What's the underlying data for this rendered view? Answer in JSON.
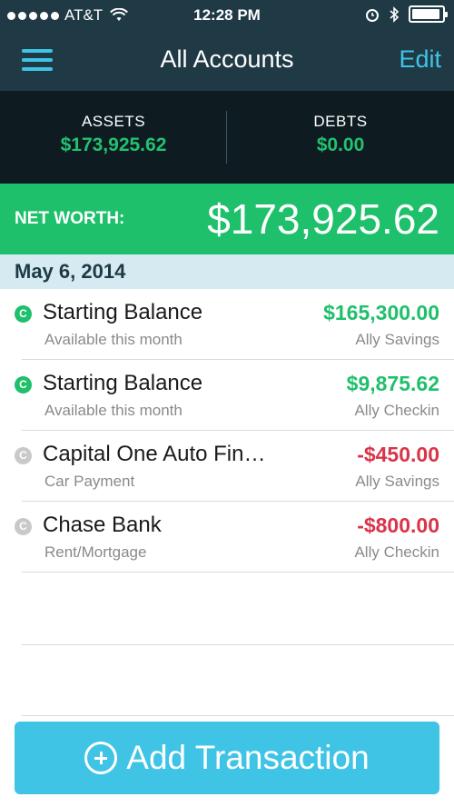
{
  "status_bar": {
    "carrier": "AT&T",
    "time": "12:28 PM",
    "battery_level": 0.95
  },
  "nav": {
    "title": "All Accounts",
    "edit_label": "Edit",
    "menu_icon": "hamburger-menu-icon"
  },
  "summary": {
    "assets_label": "ASSETS",
    "assets_value": "$173,925.62",
    "debts_label": "DEBTS",
    "debts_value": "$0.00"
  },
  "net_worth": {
    "label": "NET WORTH:",
    "value": "$173,925.62"
  },
  "date_header": "May 6, 2014",
  "transactions": [
    {
      "payee": "Starting Balance",
      "category": "Available this month",
      "amount": "$165,300.00",
      "account": "Ally Savings",
      "status": "cleared",
      "icon_letter": "C"
    },
    {
      "payee": "Starting Balance",
      "category": "Available this month",
      "amount": "$9,875.62",
      "account": "Ally Checkin",
      "status": "cleared",
      "icon_letter": "C"
    },
    {
      "payee": "Capital One Auto Fin…",
      "category": "Car Payment",
      "amount": "-$450.00",
      "account": "Ally Savings",
      "status": "pending",
      "icon_letter": "C"
    },
    {
      "payee": "Chase Bank",
      "category": "Rent/Mortgage",
      "amount": "-$800.00",
      "account": "Ally Checkin",
      "status": "pending",
      "icon_letter": "C"
    }
  ],
  "add_button": {
    "label": "Add Transaction",
    "icon": "plus-circle-icon"
  },
  "colors": {
    "nav_bg": "#1f3a45",
    "summary_bg": "#0e1c22",
    "accent_blue": "#3fc4e6",
    "positive_green": "#1fc06b",
    "negative_red": "#d9344a",
    "date_bg": "#d5ebf1"
  }
}
